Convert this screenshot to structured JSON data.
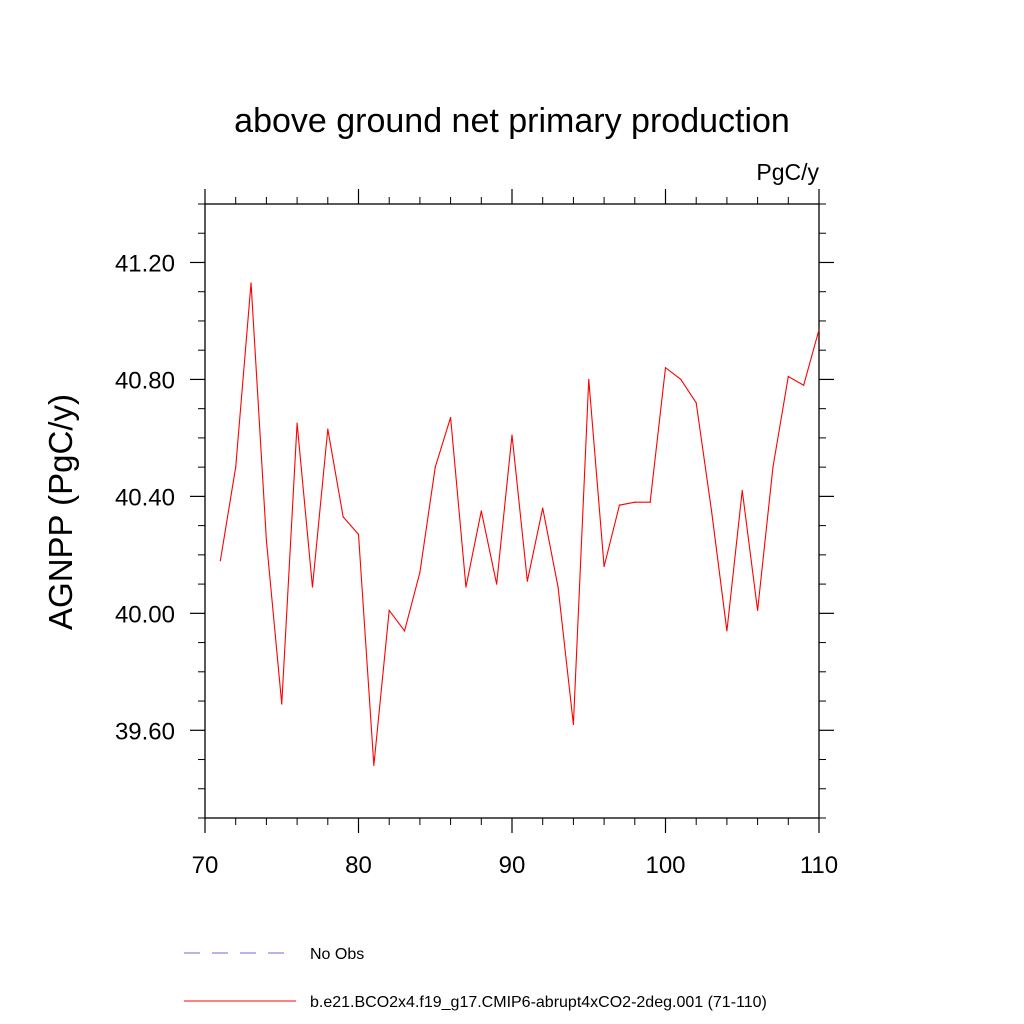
{
  "chart_data": {
    "type": "line",
    "title": "above ground net primary production",
    "units": "PgC/y",
    "ylabel": "AGNPP  (PgC/y)",
    "xlabel": "",
    "xlim": [
      70,
      110
    ],
    "ylim": [
      39.3,
      41.4
    ],
    "x_major_ticks": [
      70,
      80,
      90,
      100,
      110
    ],
    "x_tick_labels": [
      "70",
      "80",
      "90",
      "100",
      "110"
    ],
    "x_minor_step": 2,
    "y_major_ticks": [
      39.6,
      40.0,
      40.4,
      40.8,
      41.2
    ],
    "y_tick_labels": [
      "39.60",
      "40.00",
      "40.40",
      "40.80",
      "41.20"
    ],
    "y_minor_step": 0.1,
    "grid": false,
    "legend_position": "bottom",
    "colors": {
      "series": "#ff0000",
      "obs": "#6b6bd6",
      "axis": "#000000"
    },
    "legend": [
      {
        "label": "No Obs",
        "style": "dashed",
        "color": "#6b6bd6"
      },
      {
        "label": "b.e21.BCO2x4.f19_g17.CMIP6-abrupt4xCO2-2deg.001 (71-110)",
        "style": "solid",
        "color": "#ff0000"
      }
    ],
    "series": [
      {
        "name": "b.e21.BCO2x4.f19_g17.CMIP6-abrupt4xCO2-2deg.001 (71-110)",
        "x": [
          71,
          72,
          73,
          74,
          75,
          76,
          77,
          78,
          79,
          80,
          81,
          82,
          83,
          84,
          85,
          86,
          87,
          88,
          89,
          90,
          91,
          92,
          93,
          94,
          95,
          96,
          97,
          98,
          99,
          100,
          101,
          102,
          103,
          104,
          105,
          106,
          107,
          108,
          109,
          110
        ],
        "values": [
          40.18,
          40.5,
          41.13,
          40.25,
          39.69,
          40.65,
          40.09,
          40.63,
          40.33,
          40.27,
          39.48,
          40.01,
          39.94,
          40.14,
          40.5,
          40.67,
          40.09,
          40.35,
          40.1,
          40.61,
          40.11,
          40.36,
          40.09,
          39.62,
          40.8,
          40.16,
          40.37,
          40.38,
          40.38,
          40.84,
          40.8,
          40.72,
          40.35,
          39.94,
          40.42,
          40.01,
          40.5,
          40.81,
          40.78,
          40.97
        ]
      }
    ]
  }
}
